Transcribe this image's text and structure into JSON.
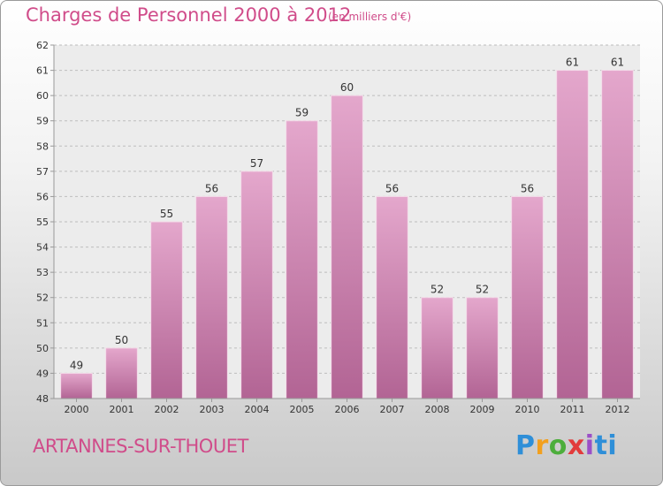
{
  "chart_data": {
    "type": "bar",
    "title": "Charges de Personnel 2000 à 2012",
    "subtitle": "(en milliers d'€)",
    "categories": [
      "2000",
      "2001",
      "2002",
      "2003",
      "2004",
      "2005",
      "2006",
      "2007",
      "2008",
      "2009",
      "2010",
      "2011",
      "2012"
    ],
    "values": [
      49,
      50,
      55,
      56,
      57,
      59,
      60,
      56,
      52,
      52,
      56,
      61,
      61
    ],
    "ylim": [
      48,
      62
    ],
    "yticks": [
      48,
      49,
      50,
      51,
      52,
      53,
      54,
      55,
      56,
      57,
      58,
      59,
      60,
      61,
      62
    ],
    "grid": true,
    "bar_color": "#c95c95",
    "xlabel": "",
    "ylabel": ""
  },
  "place_name": "ARTANNES-SUR-THOUET",
  "logo": {
    "text": "Proxiti",
    "letters": [
      "P",
      "r",
      "o",
      "x",
      "i",
      "ti"
    ]
  },
  "colors": {
    "accent": "#d04c8a",
    "bar_top": "#e4a7cc",
    "bar_bottom": "#b26494"
  }
}
